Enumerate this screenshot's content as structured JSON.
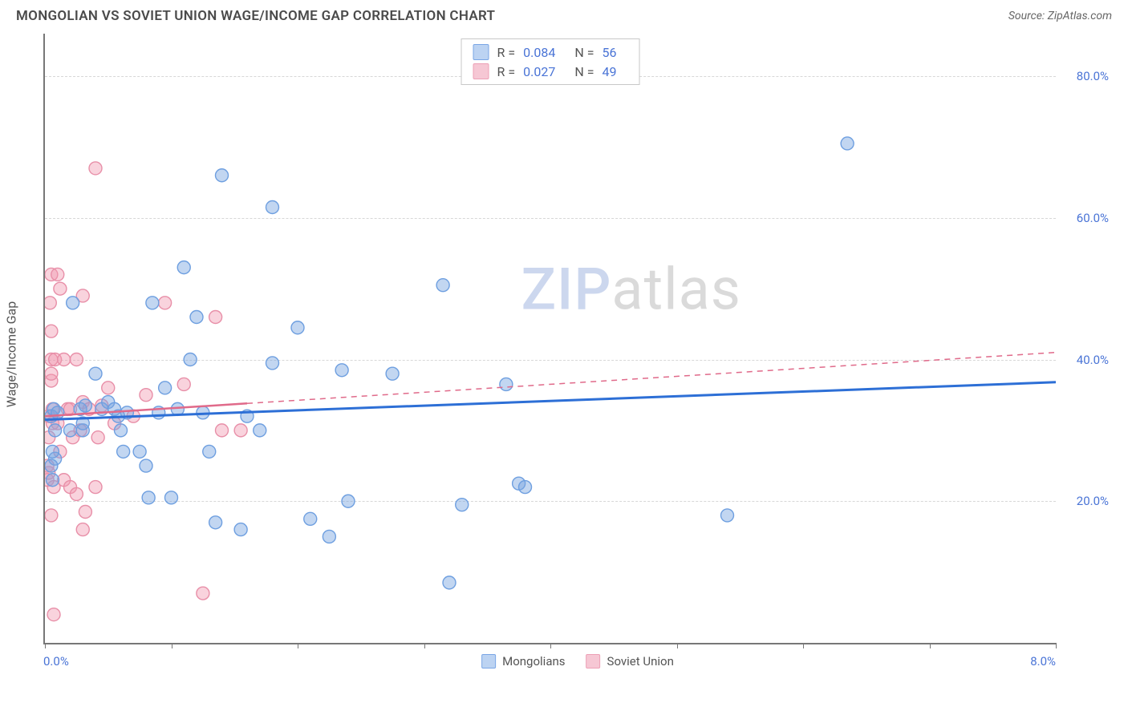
{
  "header": {
    "title": "MONGOLIAN VS SOVIET UNION WAGE/INCOME GAP CORRELATION CHART",
    "source_prefix": "Source: ",
    "source": "ZipAtlas.com"
  },
  "watermark": {
    "zip": "ZIP",
    "atlas": "atlas"
  },
  "chart": {
    "type": "scatter",
    "y_axis_title": "Wage/Income Gap",
    "xlim": [
      0.0,
      8.0
    ],
    "ylim": [
      0.0,
      86.0
    ],
    "x_min_label": "0.0%",
    "x_max_label": "8.0%",
    "x_tick_step": 1.0,
    "y_ticks": [
      20.0,
      40.0,
      60.0,
      80.0
    ],
    "y_tick_labels": [
      "20.0%",
      "40.0%",
      "60.0%",
      "80.0%"
    ],
    "grid_color": "#d7d7d7",
    "axis_color": "#777777",
    "tick_label_color": "#4a74d6",
    "marker_radius": 8,
    "marker_stroke_width": 1.4,
    "series": [
      {
        "name": "Mongolians",
        "fill": "rgba(120,165,225,0.45)",
        "stroke": "#6e9fe0",
        "swatch_fill": "#bcd3f2",
        "swatch_border": "#7aa6e6",
        "R": "0.084",
        "N": "56",
        "trend": {
          "x1": 0.0,
          "y1": 31.5,
          "x2": 8.0,
          "y2": 36.8,
          "color": "#2d6fd6",
          "width": 3,
          "dash": ""
        },
        "points": [
          [
            0.05,
            32
          ],
          [
            0.07,
            33
          ],
          [
            0.08,
            26
          ],
          [
            0.06,
            27
          ],
          [
            0.06,
            23
          ],
          [
            0.05,
            25
          ],
          [
            0.08,
            30
          ],
          [
            0.1,
            32.5
          ],
          [
            0.2,
            30
          ],
          [
            0.22,
            48
          ],
          [
            0.28,
            33
          ],
          [
            0.3,
            30
          ],
          [
            0.3,
            31
          ],
          [
            0.32,
            33.5
          ],
          [
            0.4,
            38
          ],
          [
            0.45,
            33
          ],
          [
            0.5,
            34
          ],
          [
            0.55,
            33
          ],
          [
            0.58,
            32
          ],
          [
            0.6,
            30
          ],
          [
            0.62,
            27
          ],
          [
            0.65,
            32.5
          ],
          [
            0.75,
            27
          ],
          [
            0.8,
            25
          ],
          [
            0.82,
            20.5
          ],
          [
            0.85,
            48
          ],
          [
            0.9,
            32.5
          ],
          [
            0.95,
            36
          ],
          [
            1.0,
            20.5
          ],
          [
            1.05,
            33
          ],
          [
            1.1,
            53
          ],
          [
            1.15,
            40
          ],
          [
            1.2,
            46
          ],
          [
            1.25,
            32.5
          ],
          [
            1.3,
            27
          ],
          [
            1.35,
            17
          ],
          [
            1.4,
            66
          ],
          [
            1.55,
            16
          ],
          [
            1.6,
            32
          ],
          [
            1.7,
            30
          ],
          [
            1.8,
            39.5
          ],
          [
            1.8,
            61.5
          ],
          [
            2.0,
            44.5
          ],
          [
            2.1,
            17.5
          ],
          [
            2.25,
            15
          ],
          [
            2.35,
            38.5
          ],
          [
            2.4,
            20
          ],
          [
            2.75,
            38
          ],
          [
            3.15,
            50.5
          ],
          [
            3.2,
            8.5
          ],
          [
            3.3,
            19.5
          ],
          [
            3.65,
            36.5
          ],
          [
            3.75,
            22.5
          ],
          [
            3.8,
            22
          ],
          [
            5.4,
            18
          ],
          [
            6.35,
            70.5
          ]
        ]
      },
      {
        "name": "Soviet Union",
        "fill": "rgba(240,150,175,0.42)",
        "stroke": "#e88fa8",
        "swatch_fill": "#f6c7d4",
        "swatch_border": "#eda0b6",
        "R": "0.027",
        "N": "49",
        "trend": {
          "x1": 0.0,
          "y1": 32.0,
          "x2": 8.0,
          "y2": 41.0,
          "color": "#e06a8a",
          "width": 1.5,
          "dash": "7,6"
        },
        "trend_solid_until_x": 1.6,
        "points": [
          [
            0.02,
            23
          ],
          [
            0.02,
            25
          ],
          [
            0.03,
            24
          ],
          [
            0.03,
            29
          ],
          [
            0.03,
            32
          ],
          [
            0.04,
            48
          ],
          [
            0.05,
            52
          ],
          [
            0.05,
            44
          ],
          [
            0.05,
            40
          ],
          [
            0.05,
            37
          ],
          [
            0.05,
            38
          ],
          [
            0.05,
            18
          ],
          [
            0.06,
            33
          ],
          [
            0.06,
            31
          ],
          [
            0.07,
            22
          ],
          [
            0.07,
            4
          ],
          [
            0.08,
            40
          ],
          [
            0.1,
            31
          ],
          [
            0.1,
            52
          ],
          [
            0.12,
            27
          ],
          [
            0.12,
            50
          ],
          [
            0.15,
            23
          ],
          [
            0.15,
            40
          ],
          [
            0.18,
            33
          ],
          [
            0.2,
            22
          ],
          [
            0.2,
            33
          ],
          [
            0.22,
            29
          ],
          [
            0.25,
            40
          ],
          [
            0.25,
            21
          ],
          [
            0.28,
            30
          ],
          [
            0.3,
            49
          ],
          [
            0.3,
            34
          ],
          [
            0.3,
            16
          ],
          [
            0.32,
            18.5
          ],
          [
            0.35,
            33
          ],
          [
            0.4,
            67
          ],
          [
            0.4,
            22
          ],
          [
            0.42,
            29
          ],
          [
            0.45,
            33.5
          ],
          [
            0.5,
            36
          ],
          [
            0.55,
            31
          ],
          [
            0.7,
            32
          ],
          [
            0.8,
            35
          ],
          [
            0.95,
            48
          ],
          [
            1.1,
            36.5
          ],
          [
            1.25,
            7
          ],
          [
            1.35,
            46
          ],
          [
            1.4,
            30
          ],
          [
            1.55,
            30
          ]
        ]
      }
    ]
  },
  "legend": {
    "series1": "Mongolians",
    "series2": "Soviet Union"
  },
  "stats_labels": {
    "R": "R =",
    "N": "N ="
  }
}
